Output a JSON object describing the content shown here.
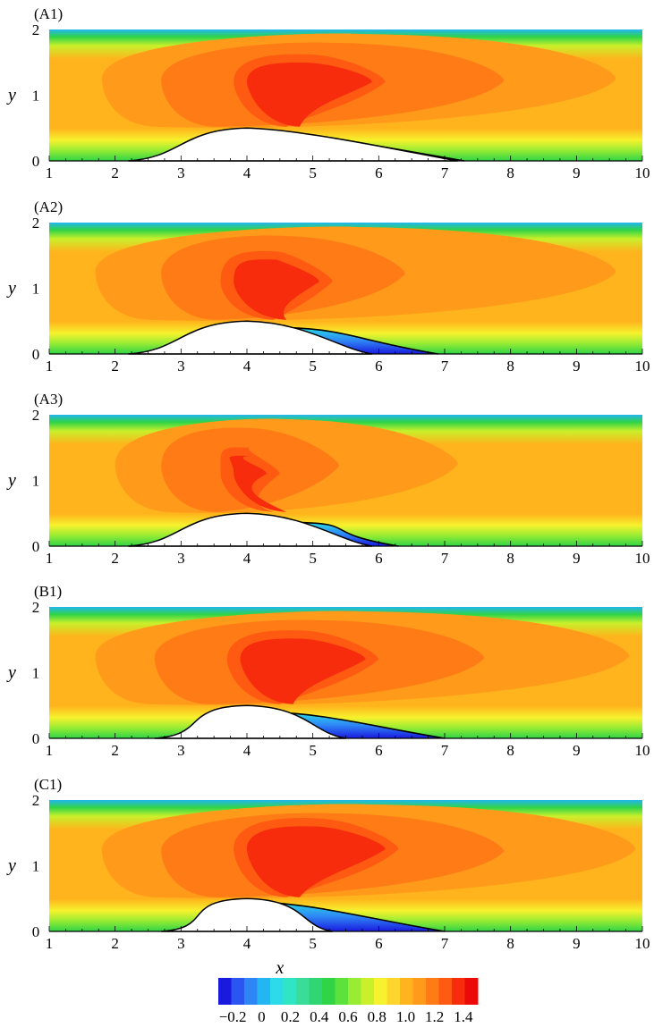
{
  "chart_data": {
    "type": "heatmap",
    "colormap": [
      "#1a1adf",
      "#2a55f0",
      "#2e86f5",
      "#23b6f2",
      "#2cdbe8",
      "#2fe5c3",
      "#3adc9a",
      "#2fd673",
      "#2fd447",
      "#5ce23a",
      "#98ec33",
      "#c9f02a",
      "#f6f22d",
      "#fdd52c",
      "#ffb31c",
      "#ff9a1a",
      "#ff7b16",
      "#ff5a12",
      "#f62c0c",
      "#ec0a08"
    ],
    "panels": [
      {
        "label": "(A1)",
        "x": [
          1,
          2,
          3,
          4,
          5,
          6,
          7,
          8,
          9,
          10
        ],
        "y_ticks": [
          0,
          1,
          2
        ],
        "ylabel": "y",
        "xlabel": ""
      },
      {
        "label": "(A2)",
        "x": [
          1,
          2,
          3,
          4,
          5,
          6,
          7,
          8,
          9,
          10
        ],
        "y_ticks": [
          0,
          1,
          2
        ],
        "ylabel": "y",
        "xlabel": ""
      },
      {
        "label": "(A3)",
        "x": [
          1,
          2,
          3,
          4,
          5,
          6,
          7,
          8,
          9,
          10
        ],
        "y_ticks": [
          0,
          1,
          2
        ],
        "ylabel": "y",
        "xlabel": ""
      },
      {
        "label": "(B1)",
        "x": [
          1,
          2,
          3,
          4,
          5,
          6,
          7,
          8,
          9,
          10
        ],
        "y_ticks": [
          0,
          1,
          2
        ],
        "ylabel": "y",
        "xlabel": ""
      },
      {
        "label": "(C1)",
        "x": [
          1,
          2,
          3,
          4,
          5,
          6,
          7,
          8,
          9,
          10
        ],
        "y_ticks": [
          0,
          1,
          2
        ],
        "ylabel": "y",
        "xlabel": "x"
      }
    ],
    "xlim": [
      1,
      10
    ],
    "ylim": [
      0,
      2
    ],
    "colorbar": {
      "range": [
        -0.3,
        1.5
      ],
      "tick_labels": [
        "−0.2",
        "0",
        "0.2",
        "0.4",
        "0.6",
        "0.8",
        "1.0",
        "1.2",
        "1.4"
      ],
      "tick_values": [
        -0.2,
        0,
        0.2,
        0.4,
        0.6,
        0.8,
        1.0,
        1.2,
        1.4
      ]
    }
  }
}
